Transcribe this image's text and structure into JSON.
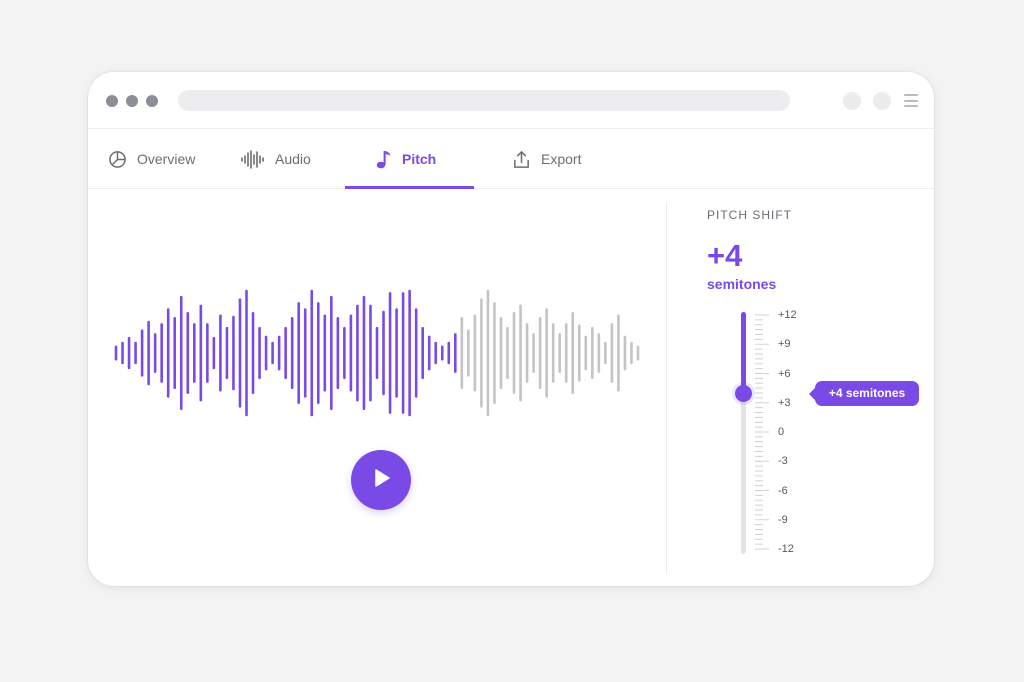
{
  "tabs": [
    {
      "label": "Overview",
      "icon": "pie-chart-icon",
      "active": false
    },
    {
      "label": "Audio",
      "icon": "waveform-icon",
      "active": false
    },
    {
      "label": "Pitch",
      "icon": "music-note-icon",
      "active": true
    },
    {
      "label": "Export",
      "icon": "upload-icon",
      "active": false
    }
  ],
  "waveform": {
    "played_fraction": 0.66,
    "played_color": "#7a4ae6",
    "unplayed_color": "#c4c4c6",
    "amplitudes": [
      0.1,
      0.16,
      0.24,
      0.16,
      0.36,
      0.5,
      0.3,
      0.46,
      0.7,
      0.56,
      0.9,
      0.64,
      0.46,
      0.76,
      0.46,
      0.24,
      0.6,
      0.4,
      0.58,
      0.86,
      1.0,
      0.64,
      0.4,
      0.26,
      0.16,
      0.26,
      0.4,
      0.56,
      0.8,
      0.7,
      1.0,
      0.8,
      0.6,
      0.9,
      0.56,
      0.4,
      0.6,
      0.76,
      0.9,
      0.76,
      0.4,
      0.66,
      0.96,
      0.7,
      0.96,
      1.0,
      0.7,
      0.4,
      0.26,
      0.16,
      0.1,
      0.16,
      0.3,
      0.56,
      0.36,
      0.6,
      0.86,
      1.0,
      0.8,
      0.56,
      0.4,
      0.64,
      0.76,
      0.46,
      0.3,
      0.56,
      0.7,
      0.46,
      0.3,
      0.46,
      0.64,
      0.44,
      0.26,
      0.4,
      0.3,
      0.16,
      0.46,
      0.6,
      0.26,
      0.16,
      0.1
    ]
  },
  "player": {
    "play_icon": "play-icon"
  },
  "pitch": {
    "label": "PITCH SHIFT",
    "value": "+4",
    "unit": "semitones",
    "semitones": 4,
    "min": -12,
    "max": 12,
    "scale_labels": [
      "+12",
      "+9",
      "+6",
      "+3",
      "0",
      "-3",
      "-6",
      "-9",
      "-12"
    ],
    "tooltip": "+4 semitones"
  },
  "colors": {
    "accent": "#7a4ae6",
    "inactive_text": "#6a6d74"
  }
}
